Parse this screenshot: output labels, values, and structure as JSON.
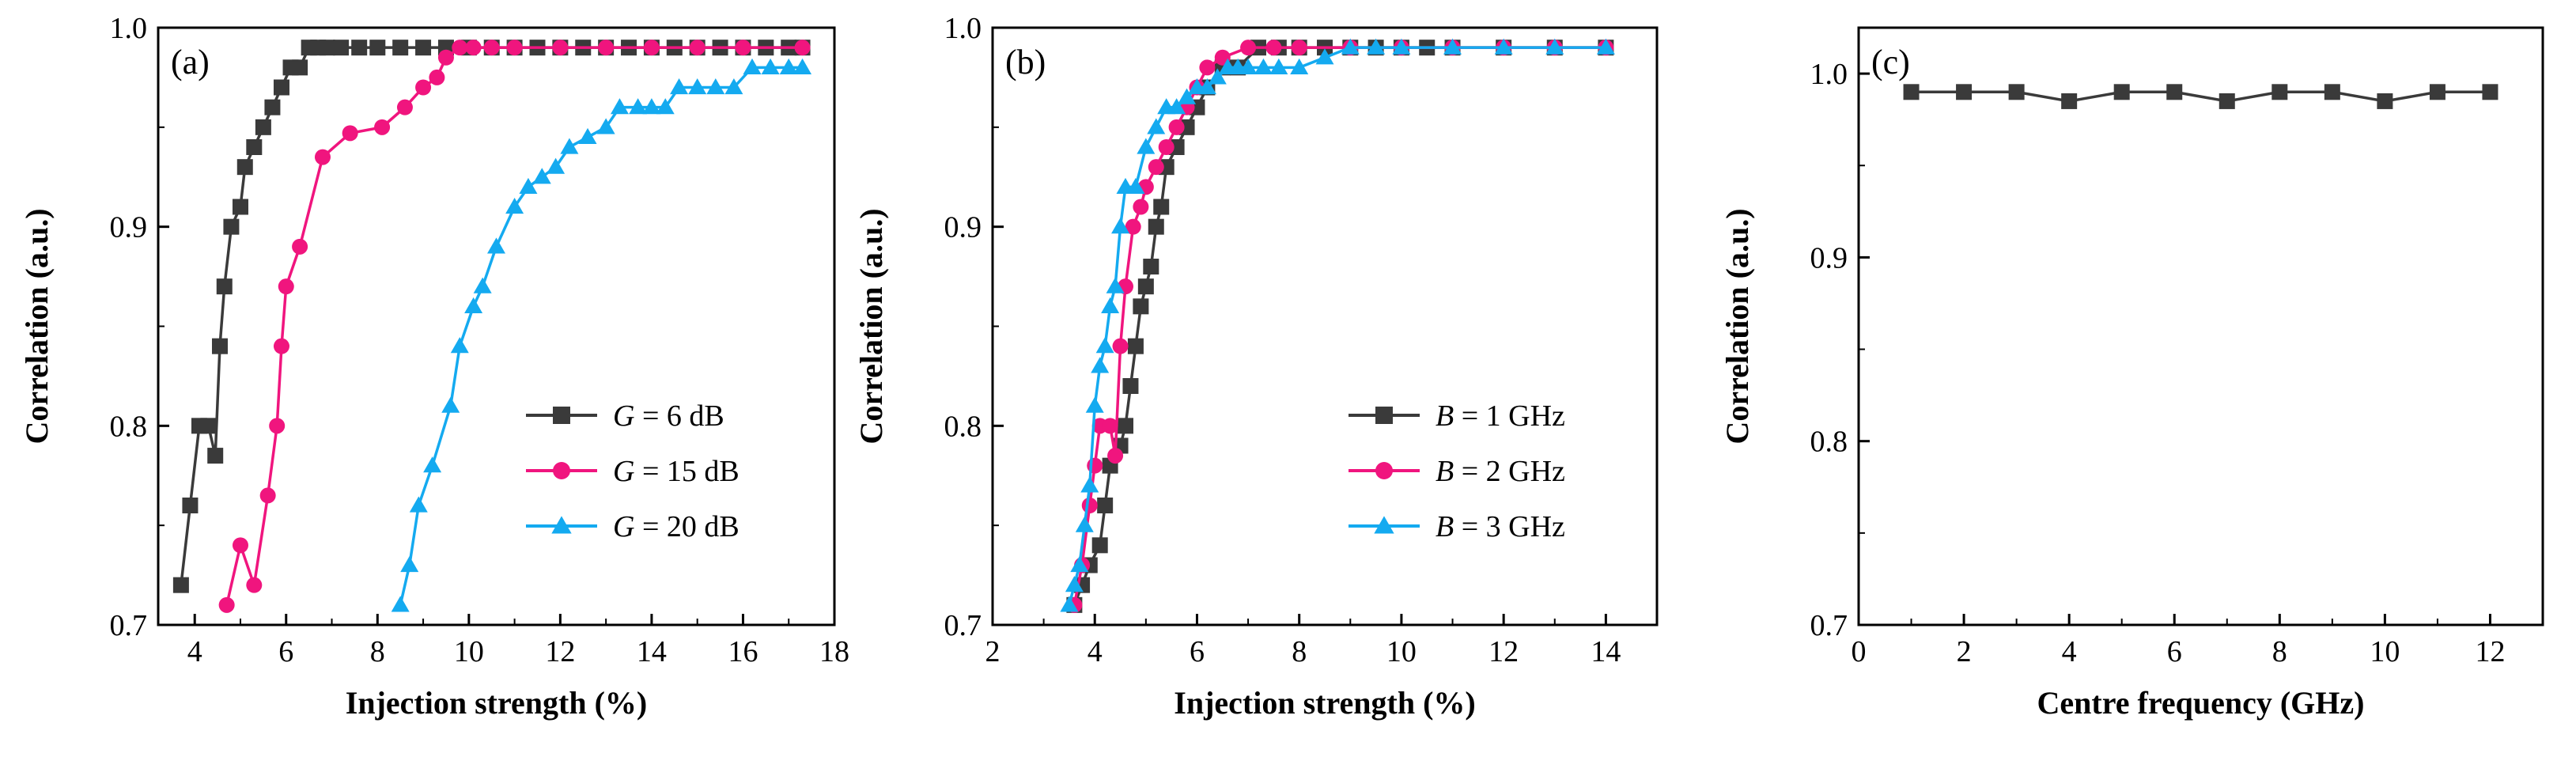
{
  "chart_data": [
    {
      "type": "line",
      "panel_label": "(a)",
      "xlabel": "Injection strength (%)",
      "ylabel": "Correlation (a.u.)",
      "xlim": [
        3.2,
        18
      ],
      "ylim": [
        0.7,
        1.0
      ],
      "xticks": [
        4,
        6,
        8,
        10,
        12,
        14,
        16,
        18
      ],
      "yticks": [
        0.7,
        0.8,
        0.9,
        1.0
      ],
      "xtick_labels": [
        "4",
        "6",
        "8",
        "10",
        "12",
        "14",
        "16",
        "18"
      ],
      "ytick_labels": [
        "0.7",
        "0.8",
        "0.9",
        "1.0"
      ],
      "legend_position": "lower-right",
      "series": [
        {
          "name": "G = 6 dB",
          "var": "G",
          "rest": " = 6 dB",
          "color": "#3a3a3a",
          "marker": "square",
          "x": [
            3.7,
            3.9,
            4.1,
            4.3,
            4.45,
            4.55,
            4.65,
            4.8,
            5.0,
            5.1,
            5.3,
            5.5,
            5.7,
            5.9,
            6.1,
            6.3,
            6.5,
            6.7,
            6.9,
            7.2,
            7.6,
            8.0,
            8.5,
            9.0,
            9.5,
            10.0,
            10.5,
            11.0,
            11.5,
            12.0,
            12.5,
            13.0,
            13.5,
            14.0,
            14.5,
            15.0,
            15.5,
            16.0,
            16.5,
            17.0,
            17.3
          ],
          "y": [
            0.72,
            0.76,
            0.8,
            0.8,
            0.785,
            0.84,
            0.87,
            0.9,
            0.91,
            0.93,
            0.94,
            0.95,
            0.96,
            0.97,
            0.98,
            0.98,
            0.99,
            0.99,
            0.99,
            0.99,
            0.99,
            0.99,
            0.99,
            0.99,
            0.99,
            0.99,
            0.99,
            0.99,
            0.99,
            0.99,
            0.99,
            0.99,
            0.99,
            0.99,
            0.99,
            0.99,
            0.99,
            0.99,
            0.99,
            0.99,
            0.99
          ]
        },
        {
          "name": "G = 15 dB",
          "var": "G",
          "rest": " = 15 dB",
          "color": "#f0157e",
          "marker": "circle",
          "x": [
            4.7,
            5.0,
            5.3,
            5.6,
            5.8,
            5.9,
            6.0,
            6.3,
            6.8,
            7.4,
            8.1,
            8.6,
            9.0,
            9.3,
            9.5,
            9.8,
            10.1,
            10.5,
            11.0,
            12.0,
            13.0,
            14.0,
            15.0,
            16.0,
            17.3
          ],
          "y": [
            0.71,
            0.74,
            0.72,
            0.765,
            0.8,
            0.84,
            0.87,
            0.89,
            0.935,
            0.947,
            0.95,
            0.96,
            0.97,
            0.975,
            0.985,
            0.99,
            0.99,
            0.99,
            0.99,
            0.99,
            0.99,
            0.99,
            0.99,
            0.99,
            0.99
          ]
        },
        {
          "name": "G = 20 dB",
          "var": "G",
          "rest": " = 20 dB",
          "color": "#14aaf0",
          "marker": "triangle",
          "x": [
            8.5,
            8.7,
            8.9,
            9.2,
            9.6,
            9.8,
            10.1,
            10.3,
            10.6,
            11.0,
            11.3,
            11.6,
            11.9,
            12.2,
            12.6,
            13.0,
            13.3,
            13.7,
            14.0,
            14.3,
            14.6,
            15.0,
            15.4,
            15.8,
            16.2,
            16.6,
            17.0,
            17.3
          ],
          "y": [
            0.71,
            0.73,
            0.76,
            0.78,
            0.81,
            0.84,
            0.86,
            0.87,
            0.89,
            0.91,
            0.92,
            0.925,
            0.93,
            0.94,
            0.945,
            0.95,
            0.96,
            0.96,
            0.96,
            0.96,
            0.97,
            0.97,
            0.97,
            0.97,
            0.98,
            0.98,
            0.98,
            0.98
          ]
        }
      ]
    },
    {
      "type": "line",
      "panel_label": "(b)",
      "xlabel": "Injection strength (%)",
      "ylabel": "Correlation (a.u.)",
      "xlim": [
        2,
        15
      ],
      "ylim": [
        0.7,
        1.0
      ],
      "xticks": [
        2,
        4,
        6,
        8,
        10,
        12,
        14
      ],
      "yticks": [
        0.7,
        0.8,
        0.9,
        1.0
      ],
      "xtick_labels": [
        "2",
        "4",
        "6",
        "8",
        "10",
        "12",
        "14"
      ],
      "ytick_labels": [
        "0.7",
        "0.8",
        "0.9",
        "1.0"
      ],
      "legend_position": "lower-right",
      "series": [
        {
          "name": "B = 1 GHz",
          "var": "B",
          "rest": " = 1 GHz",
          "color": "#3a3a3a",
          "marker": "square",
          "x": [
            3.6,
            3.75,
            3.9,
            4.1,
            4.2,
            4.3,
            4.5,
            4.6,
            4.7,
            4.8,
            4.9,
            5.0,
            5.1,
            5.2,
            5.3,
            5.4,
            5.6,
            5.8,
            6.0,
            6.2,
            6.5,
            6.8,
            7.2,
            7.6,
            8.0,
            8.5,
            9.0,
            9.5,
            10.0,
            10.5,
            11.0,
            12.0,
            13.0,
            14.0
          ],
          "y": [
            0.71,
            0.72,
            0.73,
            0.74,
            0.76,
            0.78,
            0.79,
            0.8,
            0.82,
            0.84,
            0.86,
            0.87,
            0.88,
            0.9,
            0.91,
            0.93,
            0.94,
            0.95,
            0.96,
            0.97,
            0.98,
            0.98,
            0.99,
            0.99,
            0.99,
            0.99,
            0.99,
            0.99,
            0.99,
            0.99,
            0.99,
            0.99,
            0.99,
            0.99
          ]
        },
        {
          "name": "B = 2 GHz",
          "var": "B",
          "rest": " = 2 GHz",
          "color": "#f0157e",
          "marker": "circle",
          "x": [
            3.6,
            3.75,
            3.9,
            4.0,
            4.1,
            4.3,
            4.4,
            4.5,
            4.6,
            4.75,
            4.9,
            5.0,
            5.2,
            5.4,
            5.6,
            5.8,
            6.0,
            6.2,
            6.5,
            7.0,
            7.5,
            8.0,
            9.0,
            10.0,
            11.0,
            12.0,
            13.0,
            14.0
          ],
          "y": [
            0.71,
            0.73,
            0.76,
            0.78,
            0.8,
            0.8,
            0.785,
            0.84,
            0.87,
            0.9,
            0.91,
            0.92,
            0.93,
            0.94,
            0.95,
            0.96,
            0.97,
            0.98,
            0.985,
            0.99,
            0.99,
            0.99,
            0.99,
            0.99,
            0.99,
            0.99,
            0.99,
            0.99
          ]
        },
        {
          "name": "B = 3 GHz",
          "var": "B",
          "rest": " = 3 GHz",
          "color": "#14aaf0",
          "marker": "triangle",
          "x": [
            3.5,
            3.6,
            3.7,
            3.8,
            3.9,
            4.0,
            4.1,
            4.2,
            4.3,
            4.4,
            4.5,
            4.6,
            4.8,
            5.0,
            5.2,
            5.4,
            5.6,
            5.8,
            6.0,
            6.2,
            6.4,
            6.6,
            6.8,
            7.0,
            7.3,
            7.6,
            8.0,
            8.5,
            9.0,
            9.5,
            10.0,
            11.0,
            12.0,
            13.0,
            14.0
          ],
          "y": [
            0.71,
            0.72,
            0.73,
            0.75,
            0.77,
            0.81,
            0.83,
            0.84,
            0.86,
            0.87,
            0.9,
            0.92,
            0.92,
            0.94,
            0.95,
            0.96,
            0.96,
            0.965,
            0.97,
            0.97,
            0.975,
            0.98,
            0.98,
            0.98,
            0.98,
            0.98,
            0.98,
            0.985,
            0.99,
            0.99,
            0.99,
            0.99,
            0.99,
            0.99,
            0.99
          ]
        }
      ]
    },
    {
      "type": "line",
      "panel_label": "(c)",
      "xlabel": "Centre frequency (GHz)",
      "ylabel": "Correlation (a.u.)",
      "xlim": [
        0,
        13
      ],
      "ylim": [
        0.7,
        1.025
      ],
      "xticks": [
        0,
        2,
        4,
        6,
        8,
        10,
        12
      ],
      "yticks": [
        0.7,
        0.8,
        0.9,
        1.0
      ],
      "xtick_labels": [
        "0",
        "2",
        "4",
        "6",
        "8",
        "10",
        "12"
      ],
      "ytick_labels": [
        "0.7",
        "0.8",
        "0.9",
        "1.0"
      ],
      "legend_position": "none",
      "series": [
        {
          "name": "Correlation",
          "color": "#3a3a3a",
          "marker": "square",
          "x": [
            1,
            2,
            3,
            4,
            5,
            6,
            7,
            8,
            9,
            10,
            11,
            12
          ],
          "y": [
            0.99,
            0.99,
            0.99,
            0.985,
            0.99,
            0.99,
            0.985,
            0.99,
            0.99,
            0.985,
            0.99,
            0.99
          ]
        }
      ]
    }
  ]
}
